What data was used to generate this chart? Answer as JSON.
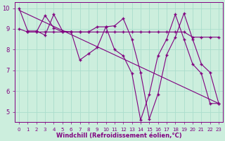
{
  "x": [
    0,
    1,
    2,
    3,
    4,
    5,
    6,
    7,
    8,
    9,
    10,
    11,
    12,
    13,
    14,
    15,
    16,
    17,
    18,
    19,
    20,
    21,
    22,
    23
  ],
  "line1": [
    10.0,
    8.9,
    8.9,
    8.7,
    9.7,
    8.9,
    8.85,
    7.5,
    7.8,
    8.1,
    9.1,
    9.15,
    9.5,
    8.5,
    6.9,
    4.65,
    5.85,
    7.75,
    8.6,
    9.75,
    8.5,
    7.3,
    6.9,
    5.4
  ],
  "line2": [
    9.0,
    8.85,
    8.85,
    8.85,
    8.85,
    8.85,
    8.85,
    8.85,
    8.85,
    8.85,
    8.85,
    8.85,
    8.85,
    8.85,
    8.85,
    8.85,
    8.85,
    8.85,
    8.85,
    8.85,
    8.6,
    8.6,
    8.6,
    8.6
  ],
  "line3": [
    9.0,
    8.85,
    8.85,
    9.65,
    9.05,
    8.85,
    8.85,
    8.85,
    8.85,
    9.1,
    9.1,
    8.0,
    7.7,
    6.85,
    4.6,
    5.85,
    7.7,
    8.5,
    9.7,
    8.5,
    7.3,
    6.85,
    5.4,
    5.4
  ],
  "line_diag": [
    [
      0,
      9.9
    ],
    [
      23,
      5.4
    ]
  ],
  "line_color": "#800080",
  "bg_color": "#cceedd",
  "grid_color": "#aaddcc",
  "ylabel_ticks": [
    5,
    6,
    7,
    8,
    9,
    10
  ],
  "xlabel": "Windchill (Refroidissement éolien,°C)",
  "xlim": [
    -0.5,
    23.5
  ],
  "ylim": [
    4.5,
    10.3
  ]
}
